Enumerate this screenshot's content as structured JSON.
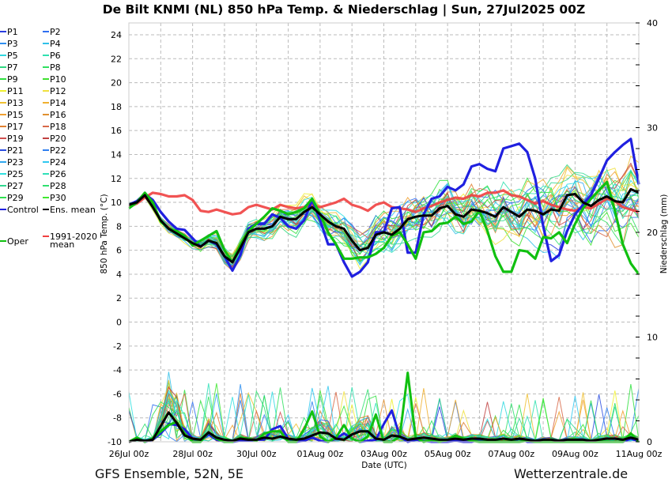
{
  "header": {
    "title": "De Bilt KNMI  (NL)  850 hPa Temp. & Niederschlag | Sun, 27Jul2025 00Z"
  },
  "footer": {
    "left": "GFS Ensemble, 52N, 5E",
    "right": "Wetterzentrale.de"
  },
  "chart_data": {
    "type": "line",
    "title": "De Bilt KNMI  (NL)  850 hPa Temp. & Niederschlag | Sun, 27Jul2025 00Z",
    "xlabel": "Date (UTC)",
    "ylabel": "850 hPa Temp. (°C)",
    "y2label": "Niederschlag (mm)",
    "ylim": [
      -10,
      25
    ],
    "y2lim": [
      0,
      40
    ],
    "yticks": [
      "-10",
      "-8",
      "-6",
      "-4",
      "-2",
      "0",
      "2",
      "4",
      "6",
      "8",
      "10",
      "12",
      "14",
      "16",
      "18",
      "20",
      "22",
      "24"
    ],
    "y2ticks": [
      "0",
      "10",
      "20",
      "30",
      "40"
    ],
    "xticks": [
      "26Jul 00z",
      "28Jul 00z",
      "30Jul 00z",
      "01Aug 00z",
      "03Aug 00z",
      "05Aug 00z",
      "07Aug 00z",
      "09Aug 00z",
      "11Aug 00z"
    ],
    "x_start": "26Jul 00z",
    "x_step_hours": 6,
    "grid": true,
    "legend_position": "left-outside",
    "legend": [
      {
        "name": "P1",
        "color": "#2a3de0"
      },
      {
        "name": "P2",
        "color": "#2f6ff0"
      },
      {
        "name": "P3",
        "color": "#2f8ff0"
      },
      {
        "name": "P4",
        "color": "#30c0e8"
      },
      {
        "name": "P5",
        "color": "#30d8e0"
      },
      {
        "name": "P6",
        "color": "#30e0b0"
      },
      {
        "name": "P7",
        "color": "#30d880"
      },
      {
        "name": "P8",
        "color": "#30e060"
      },
      {
        "name": "P9",
        "color": "#30e040"
      },
      {
        "name": "P10",
        "color": "#40e030"
      },
      {
        "name": "P11",
        "color": "#f0f030"
      },
      {
        "name": "P12",
        "color": "#f0e040"
      },
      {
        "name": "P13",
        "color": "#f0c030"
      },
      {
        "name": "P14",
        "color": "#f0b030"
      },
      {
        "name": "P15",
        "color": "#f0a030"
      },
      {
        "name": "P16",
        "color": "#e09030"
      },
      {
        "name": "P17",
        "color": "#e08030"
      },
      {
        "name": "P18",
        "color": "#d86848"
      },
      {
        "name": "P19",
        "color": "#d05050"
      },
      {
        "name": "P20",
        "color": "#c04040"
      },
      {
        "name": "P21",
        "color": "#2a4de0"
      },
      {
        "name": "P22",
        "color": "#2f7ff0"
      },
      {
        "name": "P23",
        "color": "#30a8f0"
      },
      {
        "name": "P24",
        "color": "#30c8f0"
      },
      {
        "name": "P25",
        "color": "#30e0e0"
      },
      {
        "name": "P26",
        "color": "#30e0b8"
      },
      {
        "name": "P27",
        "color": "#30d890"
      },
      {
        "name": "P28",
        "color": "#30e070"
      },
      {
        "name": "P29",
        "color": "#30e050"
      },
      {
        "name": "P30",
        "color": "#40e830"
      },
      {
        "name": "Control",
        "color": "#2020e0"
      },
      {
        "name": "Ens. mean",
        "color": "#000000"
      },
      {
        "name": "1991-2020 mean",
        "color": "#f04040"
      },
      {
        "name": "Oper",
        "color": "#10c010"
      }
    ],
    "series": [
      {
        "name": "Control",
        "axis": "temp",
        "values": [
          9.8,
          10.1,
          10.7,
          10.2,
          9.2,
          8.4,
          7.8,
          7.7,
          7.0,
          6.3,
          6.8,
          6.5,
          5.5,
          4.3,
          5.6,
          7.8,
          8.2,
          8.2,
          9.0,
          8.7,
          8.0,
          7.8,
          8.5,
          10.2,
          8.5,
          6.5,
          6.5,
          5.0,
          3.8,
          4.2,
          5.0,
          7.5,
          7.5,
          9.5,
          9.6,
          5.8,
          5.8,
          9.0,
          10.3,
          10.5,
          11.3,
          11.0,
          11.5,
          13.0,
          13.2,
          12.8,
          12.6,
          14.5,
          14.7,
          14.9,
          14.2,
          12.0,
          8.0,
          5.1,
          5.6,
          7.6,
          9.0,
          9.8,
          10.6,
          12.0,
          13.5,
          14.2,
          14.8,
          15.3,
          11.5
        ]
      },
      {
        "name": "Ens. mean",
        "axis": "temp",
        "values": [
          9.8,
          10.0,
          10.6,
          9.6,
          8.5,
          7.8,
          7.4,
          7.0,
          6.6,
          6.3,
          6.8,
          6.6,
          5.5,
          5.0,
          6.2,
          7.5,
          7.8,
          7.8,
          8.0,
          8.8,
          8.6,
          8.6,
          9.2,
          9.6,
          9.0,
          8.4,
          8.0,
          7.8,
          6.8,
          6.0,
          6.2,
          7.3,
          7.5,
          7.3,
          7.8,
          8.6,
          8.8,
          8.9,
          8.9,
          9.5,
          9.7,
          9.0,
          8.8,
          9.4,
          9.3,
          9.1,
          8.8,
          9.6,
          9.2,
          8.8,
          9.4,
          9.3,
          9.0,
          9.4,
          9.3,
          10.6,
          10.7,
          10.0,
          9.7,
          10.2,
          10.5,
          10.1,
          10.0,
          11.1,
          10.8
        ]
      },
      {
        "name": "Oper",
        "axis": "temp",
        "values": [
          9.5,
          10.0,
          10.8,
          10.0,
          8.4,
          7.8,
          7.6,
          7.2,
          6.4,
          6.8,
          7.2,
          7.6,
          6.0,
          5.0,
          6.5,
          7.6,
          8.2,
          8.8,
          9.5,
          9.3,
          9.0,
          9.2,
          9.5,
          10.3,
          9.0,
          7.5,
          6.5,
          5.3,
          5.3,
          5.4,
          5.4,
          5.7,
          6.2,
          7.2,
          7.5,
          6.5,
          5.3,
          7.5,
          7.6,
          8.2,
          8.3,
          8.8,
          8.2,
          8.4,
          9.3,
          7.6,
          5.5,
          4.2,
          4.2,
          6.0,
          5.9,
          5.3,
          7.1,
          7.0,
          7.5,
          6.6,
          8.2,
          9.5,
          10.3,
          11.0,
          11.7,
          9.3,
          6.5,
          4.9,
          4.0
        ]
      },
      {
        "name": "1991-2020 mean",
        "axis": "temp",
        "values": [
          9.6,
          9.9,
          10.4,
          10.8,
          10.7,
          10.5,
          10.5,
          10.6,
          10.2,
          9.3,
          9.2,
          9.4,
          9.2,
          9.0,
          9.1,
          9.6,
          9.8,
          9.6,
          9.4,
          9.8,
          9.6,
          9.5,
          9.6,
          9.8,
          9.6,
          9.8,
          10.0,
          10.3,
          9.8,
          9.6,
          9.3,
          9.8,
          10.0,
          9.6,
          9.5,
          9.4,
          9.2,
          9.5,
          9.7,
          10.0,
          10.2,
          10.4,
          10.3,
          10.6,
          10.5,
          10.8,
          10.8,
          11.0,
          10.6,
          10.5,
          10.2,
          9.9,
          10.1,
          9.8,
          9.6,
          9.4,
          9.3,
          9.6,
          9.5,
          9.9,
          10.3,
          10.1,
          9.6,
          9.4,
          9.2
        ]
      },
      {
        "name": "Control precip",
        "axis": "precip",
        "values": [
          0,
          0.3,
          0,
          0.2,
          0.8,
          1.7,
          1.6,
          1.2,
          0.3,
          0.1,
          0.7,
          0.2,
          0,
          0,
          0.1,
          0.1,
          0.2,
          0.2,
          1.2,
          1.5,
          0.3,
          0,
          0.1,
          0.4,
          0.1,
          0,
          0.3,
          0.8,
          0.3,
          0,
          0.1,
          0.2,
          1.7,
          3.0,
          0.5,
          0,
          0.2,
          0.1,
          0,
          0,
          0,
          0.1,
          0,
          0,
          0.2,
          0.1,
          0,
          0,
          0,
          0.3,
          0,
          0,
          0,
          0,
          0,
          0.1,
          0.2,
          0,
          0,
          0,
          0,
          0,
          0,
          0.3,
          0.1
        ]
      },
      {
        "name": "Ens. mean precip",
        "axis": "precip",
        "values": [
          0,
          0.2,
          0.1,
          0.2,
          1.5,
          2.8,
          1.8,
          0.6,
          0.3,
          0.2,
          0.9,
          0.4,
          0.2,
          0.1,
          0.3,
          0.2,
          0.2,
          0.4,
          0.3,
          0.5,
          0.3,
          0.2,
          0.3,
          0.6,
          0.9,
          0.8,
          0.3,
          0.2,
          0.7,
          1.0,
          1.0,
          0.3,
          0.2,
          0.6,
          0.5,
          0.2,
          0.3,
          0.4,
          0.3,
          0.2,
          0.2,
          0.3,
          0.2,
          0.3,
          0.3,
          0.2,
          0.2,
          0.3,
          0.2,
          0.3,
          0.2,
          0.1,
          0.2,
          0.2,
          0.1,
          0.2,
          0.2,
          0.2,
          0.1,
          0.2,
          0.3,
          0.3,
          0.2,
          0.4,
          0.2
        ]
      },
      {
        "name": "Oper precip",
        "axis": "precip",
        "values": [
          0,
          0.4,
          0,
          0.3,
          1.0,
          1.6,
          1.9,
          0.8,
          0,
          0,
          0.9,
          0.3,
          0,
          0,
          0.4,
          0.3,
          0.1,
          0.8,
          1.0,
          1.0,
          0,
          0,
          1.2,
          2.9,
          0.5,
          0,
          0.4,
          1.6,
          0.3,
          0,
          0.5,
          2.6,
          0,
          0,
          0.5,
          6.6,
          0.4,
          0,
          0.2,
          0,
          0.2,
          0.6,
          0.3,
          0.1,
          0,
          0,
          0,
          0,
          0,
          0,
          0.1,
          0,
          0,
          0,
          0,
          0,
          0,
          0,
          0,
          0,
          0,
          0,
          0,
          0.8,
          0
        ]
      }
    ]
  }
}
